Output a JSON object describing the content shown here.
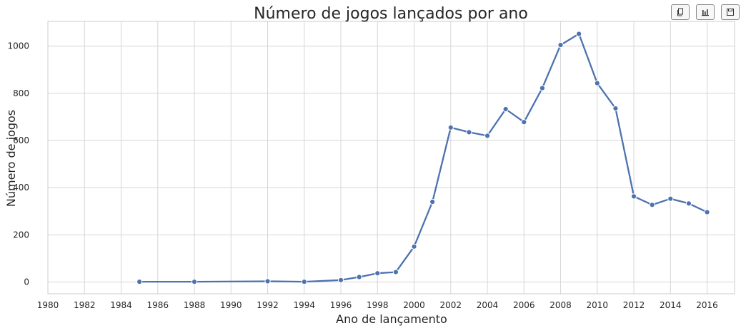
{
  "toolbar": {
    "buttons": [
      {
        "icon": "copy-icon"
      },
      {
        "icon": "bar-chart-icon"
      },
      {
        "icon": "save-icon"
      }
    ]
  },
  "colors": {
    "line": "#4c72b0",
    "grid": "#d6d6d6",
    "frame": "#cccccc",
    "text": "#262626"
  },
  "chart_data": {
    "type": "line",
    "title": "Número de jogos lançados por ano",
    "xlabel": "Ano de lançamento",
    "ylabel": "Número de jogos",
    "xlim": [
      1980,
      2017.5
    ],
    "ylim": [
      -50,
      1105
    ],
    "grid": true,
    "x_ticks": [
      1980,
      1982,
      1984,
      1986,
      1988,
      1990,
      1992,
      1994,
      1996,
      1998,
      2000,
      2002,
      2004,
      2006,
      2008,
      2010,
      2012,
      2014,
      2016
    ],
    "y_ticks": [
      0,
      200,
      400,
      600,
      800,
      1000
    ],
    "x": [
      1985,
      1988,
      1992,
      1994,
      1996,
      1997,
      1998,
      1999,
      2000,
      2001,
      2002,
      2003,
      2004,
      2005,
      2006,
      2007,
      2008,
      2009,
      2010,
      2011,
      2012,
      2013,
      2014,
      2015,
      2016
    ],
    "y": [
      1,
      1,
      3,
      1,
      8,
      21,
      37,
      42,
      150,
      340,
      655,
      635,
      620,
      733,
      678,
      822,
      1005,
      1052,
      843,
      736,
      363,
      327,
      353,
      333,
      296
    ]
  }
}
